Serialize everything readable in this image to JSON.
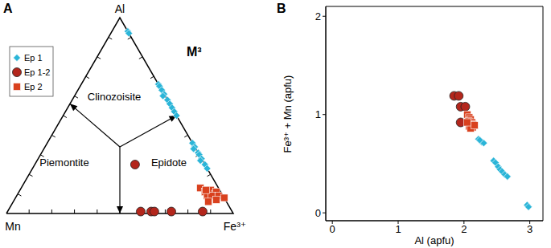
{
  "chart_data": [
    {
      "type": "ternary",
      "panel": "A",
      "title": "M³",
      "corners": {
        "top": "Al",
        "left": "Mn",
        "right": "Fe³⁺"
      },
      "ticks": [
        0.1,
        0.2,
        0.3,
        0.4,
        0.5,
        0.6,
        0.7,
        0.8,
        0.9
      ],
      "fields": [
        "Clinozoisite",
        "Piemontite",
        "Epidote"
      ],
      "boundaries": [
        {
          "from": [
            0.34,
            0.33,
            0.33
          ],
          "to": [
            0.56,
            0.44,
            0
          ]
        },
        {
          "from": [
            0.34,
            0.33,
            0.33
          ],
          "to": [
            0.5,
            0,
            0.5
          ]
        },
        {
          "from": [
            0.34,
            0.33,
            0.33
          ],
          "to": [
            0,
            0.5,
            0.5
          ]
        }
      ],
      "legend": "upper left",
      "series": [
        {
          "name": "Ep 1",
          "color": "#2bb5d8",
          "marker": "diamond",
          "values": [
            [
              0.93,
              0,
              0.07
            ],
            [
              0.92,
              0,
              0.08
            ],
            [
              0.66,
              0,
              0.34
            ],
            [
              0.65,
              0,
              0.35
            ],
            [
              0.63,
              0,
              0.37
            ],
            [
              0.61,
              0,
              0.39
            ],
            [
              0.6,
              0.01,
              0.39
            ],
            [
              0.58,
              0,
              0.42
            ],
            [
              0.56,
              0,
              0.44
            ],
            [
              0.54,
              0,
              0.46
            ],
            [
              0.52,
              0,
              0.48
            ],
            [
              0.5,
              0,
              0.5
            ],
            [
              0.36,
              0,
              0.64
            ],
            [
              0.34,
              0,
              0.66
            ],
            [
              0.33,
              0.01,
              0.66
            ],
            [
              0.31,
              0,
              0.69
            ],
            [
              0.3,
              0,
              0.7
            ],
            [
              0.28,
              0,
              0.72
            ],
            [
              0.27,
              0.01,
              0.72
            ],
            [
              0.25,
              0,
              0.75
            ],
            [
              0.23,
              0,
              0.77
            ]
          ]
        },
        {
          "name": "Ep 1-2",
          "color": "#b3261c",
          "marker": "circle",
          "values": [
            [
              0.25,
              0.308,
              0.442
            ],
            [
              0.01,
              0.403,
              0.587
            ],
            [
              0.01,
              0.357,
              0.633
            ],
            [
              0.01,
              0.343,
              0.647
            ],
            [
              0.01,
              0.268,
              0.722
            ],
            [
              0.01,
              0.13,
              0.86
            ]
          ]
        },
        {
          "name": "Ep 2",
          "color": "#d9411e",
          "marker": "square",
          "values": [
            [
              0.13,
              0.08,
              0.79
            ],
            [
              0.11,
              0.07,
              0.82
            ],
            [
              0.12,
              0.04,
              0.84
            ],
            [
              0.1,
              0.03,
              0.87
            ],
            [
              0.11,
              0.02,
              0.87
            ],
            [
              0.09,
              0.07,
              0.84
            ],
            [
              0.09,
              0.05,
              0.86
            ],
            [
              0.09,
              0.02,
              0.89
            ],
            [
              0.08,
              0,
              0.92
            ],
            [
              0.07,
              0.04,
              0.89
            ],
            [
              0.06,
              0.08,
              0.86
            ],
            [
              0.12,
              0.06,
              0.82
            ]
          ]
        }
      ]
    },
    {
      "type": "scatter",
      "panel": "B",
      "x_label": "Al (apfu)",
      "y_label": "Fe³⁺ + Mn (apfu)",
      "xlim": [
        -0.1,
        3.2
      ],
      "ylim": [
        -0.08,
        2.1
      ],
      "xticks": [
        0,
        1,
        2,
        3
      ],
      "yticks": [
        0,
        1,
        2
      ],
      "grid": false,
      "series": [
        {
          "name": "Ep 1",
          "color": "#2bb5d8",
          "marker": "diamond",
          "x": [
            2.22,
            2.25,
            2.27,
            2.3,
            2.24,
            2.45,
            2.48,
            2.52,
            2.55,
            2.58,
            2.62,
            2.66,
            2.96,
            2.98
          ],
          "y": [
            0.75,
            0.73,
            0.72,
            0.71,
            0.74,
            0.53,
            0.51,
            0.47,
            0.44,
            0.42,
            0.39,
            0.37,
            0.08,
            0.06
          ]
        },
        {
          "name": "Ep 1-2",
          "color": "#b3261c",
          "marker": "circle",
          "x": [
            1.85,
            1.92,
            1.95,
            2.02,
            1.95
          ],
          "y": [
            1.19,
            1.19,
            1.08,
            1.08,
            0.92
          ]
        },
        {
          "name": "Ep 2",
          "color": "#d9411e",
          "marker": "square",
          "x": [
            2.05,
            2.08,
            2.1,
            2.07,
            2.12,
            2.1,
            2.14,
            2.08,
            2.13,
            2.1,
            2.05,
            2.16
          ],
          "y": [
            1.0,
            0.97,
            0.95,
            0.93,
            0.92,
            0.9,
            0.9,
            0.88,
            0.87,
            0.86,
            0.92,
            0.89
          ]
        }
      ]
    }
  ]
}
